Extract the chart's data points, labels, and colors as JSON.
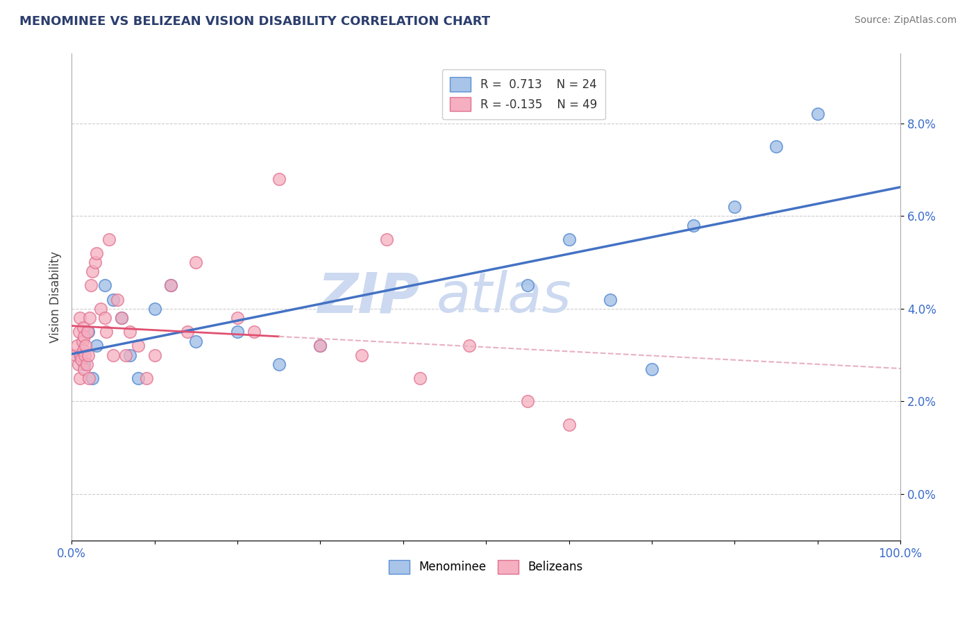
{
  "title": "MENOMINEE VS BELIZEAN VISION DISABILITY CORRELATION CHART",
  "source": "Source: ZipAtlas.com",
  "ylabel": "Vision Disability",
  "legend_blue_r": "R =  0.713",
  "legend_blue_n": "N = 24",
  "legend_pink_r": "R = -0.135",
  "legend_pink_n": "N = 49",
  "xlim": [
    0,
    100
  ],
  "ylim": [
    -1.0,
    9.5
  ],
  "yticks": [
    0,
    2,
    4,
    6,
    8
  ],
  "ytick_labels": [
    "0.0%",
    "2.0%",
    "4.0%",
    "6.0%",
    "8.0%"
  ],
  "blue_scatter_color": "#a8c4e8",
  "blue_edge_color": "#5b8fd4",
  "pink_scatter_color": "#f5afc0",
  "pink_edge_color": "#e07090",
  "blue_line_color": "#4472c4",
  "pink_line_color": "#e05070",
  "pink_line_dash_color": "#e8b0c0",
  "watermark_color": "#ccd9f0",
  "menominee_x": [
    1.0,
    1.5,
    2.0,
    2.5,
    3.0,
    4.0,
    5.0,
    6.0,
    7.0,
    8.0,
    10.0,
    12.0,
    15.0,
    20.0,
    25.0,
    30.0,
    55.0,
    60.0,
    65.0,
    70.0,
    75.0,
    80.0,
    85.0,
    90.0
  ],
  "menominee_y": [
    3.0,
    2.8,
    3.5,
    2.5,
    3.2,
    4.5,
    4.2,
    3.8,
    3.0,
    2.5,
    4.0,
    4.5,
    3.3,
    3.5,
    2.8,
    3.2,
    4.5,
    5.5,
    4.2,
    2.7,
    5.8,
    6.2,
    7.5,
    8.2
  ],
  "belizean_x": [
    0.5,
    0.7,
    0.8,
    0.9,
    1.0,
    1.0,
    1.1,
    1.2,
    1.3,
    1.4,
    1.4,
    1.5,
    1.5,
    1.6,
    1.7,
    1.8,
    1.9,
    2.0,
    2.1,
    2.2,
    2.3,
    2.5,
    2.8,
    3.0,
    3.5,
    4.0,
    4.2,
    4.5,
    5.0,
    5.5,
    6.0,
    6.5,
    7.0,
    8.0,
    9.0,
    10.0,
    12.0,
    14.0,
    15.0,
    20.0,
    22.0,
    25.0,
    30.0,
    35.0,
    38.0,
    42.0,
    48.0,
    55.0,
    60.0
  ],
  "belizean_y": [
    3.0,
    3.2,
    2.8,
    3.5,
    2.5,
    3.8,
    3.0,
    2.9,
    3.3,
    3.1,
    3.6,
    3.4,
    2.7,
    3.0,
    3.2,
    2.8,
    3.5,
    3.0,
    2.5,
    3.8,
    4.5,
    4.8,
    5.0,
    5.2,
    4.0,
    3.8,
    3.5,
    5.5,
    3.0,
    4.2,
    3.8,
    3.0,
    3.5,
    3.2,
    2.5,
    3.0,
    4.5,
    3.5,
    5.0,
    3.8,
    3.5,
    6.8,
    3.2,
    3.0,
    5.5,
    2.5,
    3.2,
    2.0,
    1.5
  ]
}
